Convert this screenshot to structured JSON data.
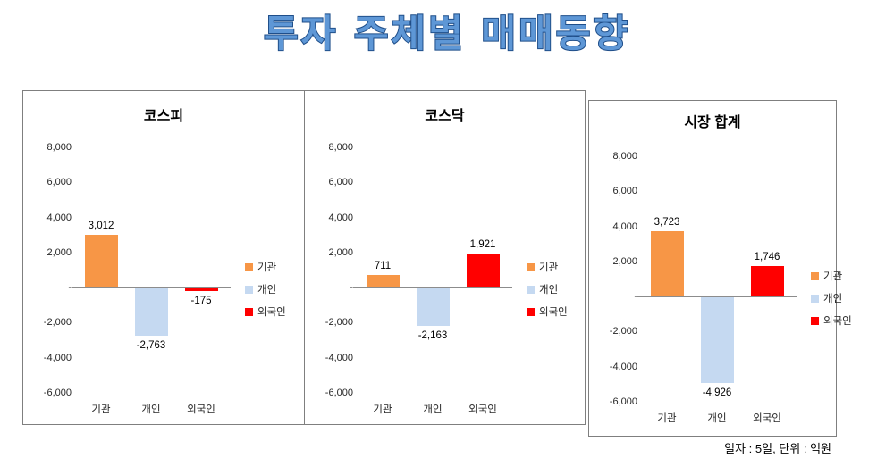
{
  "page": {
    "title": "투자 주체별 매매동향",
    "footnote": "일자 : 5일, 단위 : 억원"
  },
  "colors": {
    "institution": "#F79646",
    "individual": "#C5D9F1",
    "foreigner": "#FF0000",
    "axis_line": "#8c8c8c",
    "title_fill": "#5e97d6",
    "title_outline": "#1f4e89"
  },
  "axis": {
    "min": -6000,
    "max": 8000,
    "step": 2000,
    "tick_labels": [
      "8,000",
      "6,000",
      "4,000",
      "2,000",
      "-",
      "-2,000",
      "-4,000",
      "-6,000"
    ]
  },
  "chart_data": [
    {
      "type": "bar",
      "title": "코스피",
      "categories": [
        "기관",
        "개인",
        "외국인"
      ],
      "values": [
        3012,
        -2763,
        -175
      ],
      "value_labels": [
        "3,012",
        "-2,763",
        "-175"
      ],
      "colors": [
        "#F79646",
        "#C5D9F1",
        "#FF0000"
      ],
      "ylim": [
        -6000,
        8000
      ],
      "legend": [
        "기관",
        "개인",
        "외국인"
      ],
      "legend_position": "right",
      "grid": false
    },
    {
      "type": "bar",
      "title": "코스닥",
      "categories": [
        "기관",
        "개인",
        "외국인"
      ],
      "values": [
        711,
        -2163,
        1921
      ],
      "value_labels": [
        "711",
        "-2,163",
        "1,921"
      ],
      "colors": [
        "#F79646",
        "#C5D9F1",
        "#FF0000"
      ],
      "ylim": [
        -6000,
        8000
      ],
      "legend": [
        "기관",
        "개인",
        "외국인"
      ],
      "legend_position": "right",
      "grid": false
    },
    {
      "type": "bar",
      "title": "시장 합계",
      "categories": [
        "기관",
        "개인",
        "외국인"
      ],
      "values": [
        3723,
        -4926,
        1746
      ],
      "value_labels": [
        "3,723",
        "-4,926",
        "1,746"
      ],
      "colors": [
        "#F79646",
        "#C5D9F1",
        "#FF0000"
      ],
      "ylim": [
        -6000,
        8000
      ],
      "legend": [
        "기관",
        "개인",
        "외국인"
      ],
      "legend_position": "right",
      "grid": false
    }
  ]
}
